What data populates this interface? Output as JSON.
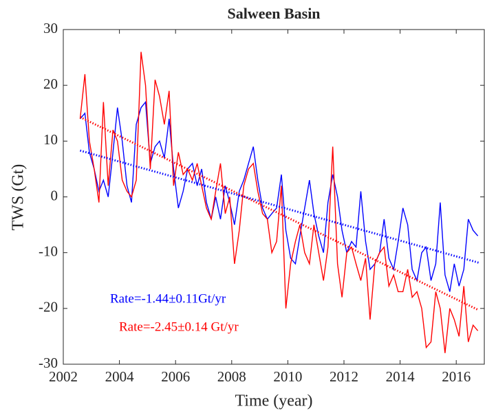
{
  "chart_data": {
    "type": "line",
    "title": "Salween Basin",
    "xlabel": "Time (year)",
    "ylabel": "TWS (Gt)",
    "x": [
      2002.6,
      2002.77,
      2002.93,
      2003.1,
      2003.27,
      2003.43,
      2003.6,
      2003.77,
      2003.93,
      2004.1,
      2004.27,
      2004.43,
      2004.6,
      2004.77,
      2004.93,
      2005.1,
      2005.27,
      2005.43,
      2005.6,
      2005.77,
      2005.93,
      2006.1,
      2006.27,
      2006.43,
      2006.6,
      2006.77,
      2006.93,
      2007.1,
      2007.27,
      2007.43,
      2007.6,
      2007.77,
      2007.93,
      2008.1,
      2008.27,
      2008.43,
      2008.6,
      2008.77,
      2008.93,
      2009.1,
      2009.27,
      2009.43,
      2009.6,
      2009.77,
      2009.93,
      2010.1,
      2010.27,
      2010.43,
      2010.6,
      2010.77,
      2010.93,
      2011.1,
      2011.27,
      2011.43,
      2011.6,
      2011.77,
      2011.93,
      2012.1,
      2012.27,
      2012.43,
      2012.6,
      2012.77,
      2012.93,
      2013.1,
      2013.27,
      2013.43,
      2013.6,
      2013.77,
      2013.93,
      2014.1,
      2014.27,
      2014.43,
      2014.6,
      2014.77,
      2014.93,
      2015.1,
      2015.27,
      2015.43,
      2015.6,
      2015.77,
      2015.93,
      2016.1,
      2016.27,
      2016.43,
      2016.6,
      2016.77
    ],
    "series": [
      {
        "color": "#0000ff",
        "values": [
          14,
          15,
          8,
          5,
          1,
          3,
          0,
          8,
          16,
          10,
          2,
          -1,
          13,
          16,
          17,
          6,
          9,
          10,
          7,
          14,
          5,
          -2,
          1,
          5,
          6,
          2,
          5,
          -1,
          -4,
          0,
          -4,
          2,
          -1,
          -5,
          1,
          3,
          6,
          9,
          3,
          -2,
          -4,
          -3,
          -2,
          4,
          -6,
          -11,
          -12,
          -7,
          -2,
          3,
          -3,
          -7,
          -10,
          -1,
          4,
          0,
          -6,
          -10,
          -8,
          -9,
          1,
          -8,
          -13,
          -12,
          -10,
          -4,
          -11,
          -13,
          -8,
          -2,
          -5,
          -13,
          -15,
          -10,
          -9,
          -15,
          -12,
          -1,
          -14,
          -17,
          -12,
          -16,
          -13,
          -4,
          -6,
          -7
        ]
      },
      {
        "color": "#ff0000",
        "values": [
          14,
          22,
          10,
          5,
          -1,
          17,
          2,
          12,
          10,
          3,
          1,
          0,
          3,
          26,
          20,
          5,
          21,
          18,
          13,
          19,
          2,
          8,
          4,
          5,
          3,
          6,
          2,
          -2,
          -4,
          1,
          6,
          -3,
          0,
          -12,
          -6,
          2,
          5,
          6,
          1,
          -3,
          -4,
          -10,
          -8,
          2,
          -20,
          -12,
          -8,
          -5,
          -10,
          -12,
          -5,
          -10,
          -15,
          -9,
          9,
          -12,
          -18,
          -10,
          -9,
          -12,
          -15,
          -11,
          -22,
          -12,
          -10,
          -9,
          -16,
          -14,
          -17,
          -17,
          -13,
          -18,
          -17,
          -20,
          -27,
          -26,
          -17,
          -20,
          -28,
          -20,
          -22,
          -25,
          -16,
          -26,
          -23,
          -24
        ]
      }
    ],
    "trends": [
      {
        "color": "#0000ff",
        "x": [
          2002.6,
          2016.8
        ],
        "values": [
          8.3,
          -11.8
        ]
      },
      {
        "color": "#ff0000",
        "x": [
          2002.6,
          2016.8
        ],
        "values": [
          14.3,
          -20.3
        ]
      }
    ],
    "annotations": [
      {
        "text": "Rate=-1.44±0.11Gt/yr",
        "color": "#0000ff"
      },
      {
        "text": "Rate=-2.45±0.14 Gt/yr",
        "color": "#ff0000"
      }
    ],
    "xlim": [
      2002,
      2017
    ],
    "xticks": [
      2002,
      2004,
      2006,
      2008,
      2010,
      2012,
      2014,
      2016
    ],
    "ylim": [
      -30,
      30
    ],
    "yticks": [
      -30,
      -20,
      -10,
      0,
      10,
      20,
      30
    ]
  }
}
